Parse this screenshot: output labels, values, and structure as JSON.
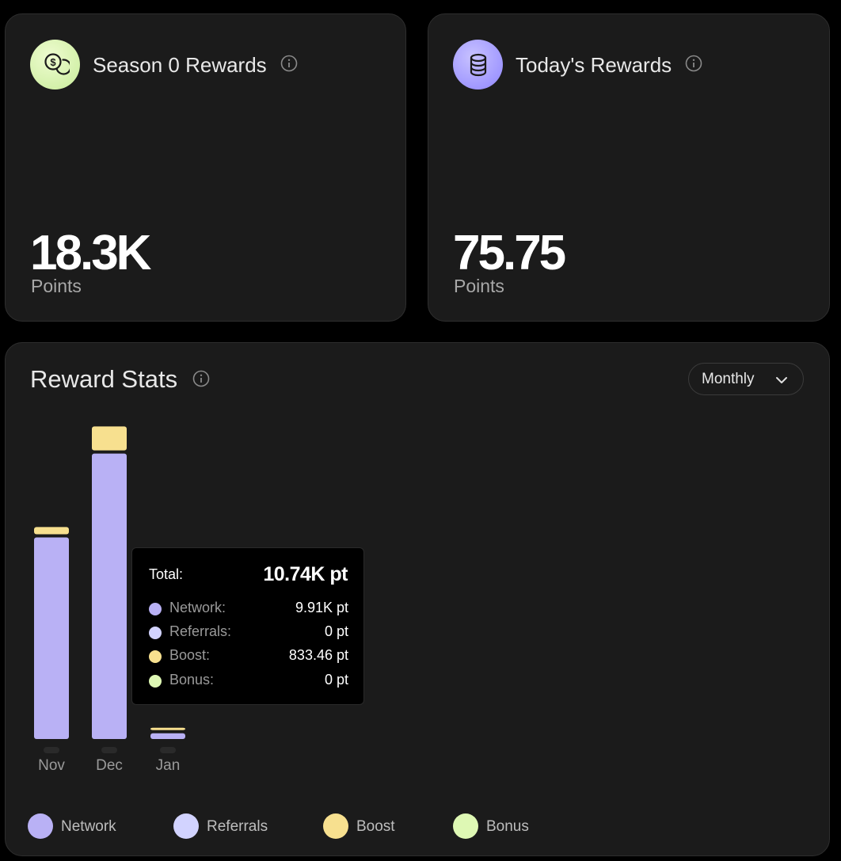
{
  "cards": {
    "season": {
      "title": "Season 0 Rewards",
      "value": "18.3K",
      "unit": "Points"
    },
    "today": {
      "title": "Today's Rewards",
      "value": "75.75",
      "unit": "Points"
    }
  },
  "stats": {
    "title": "Reward Stats",
    "period": "Monthly",
    "tooltip": {
      "total_label": "Total:",
      "total_value": "10.74K pt",
      "rows": [
        {
          "label": "Network:",
          "value": "9.91K pt",
          "color": "#b9b1f5"
        },
        {
          "label": "Referrals:",
          "value": "0 pt",
          "color": "#d2d3ff"
        },
        {
          "label": "Boost:",
          "value": "833.46 pt",
          "color": "#f7e08f"
        },
        {
          "label": "Bonus:",
          "value": "0 pt",
          "color": "#def8b4"
        }
      ]
    },
    "legend": [
      {
        "label": "Network",
        "color": "#b9b1f5"
      },
      {
        "label": "Referrals",
        "color": "#d2d3ff"
      },
      {
        "label": "Boost",
        "color": "#f7e08f"
      },
      {
        "label": "Bonus",
        "color": "#def8b4"
      }
    ]
  },
  "chart_data": {
    "type": "bar",
    "stacked": true,
    "categories": [
      "Nov",
      "Dec",
      "Jan"
    ],
    "series": [
      {
        "name": "Network",
        "color": "#b9b1f5",
        "values": [
          7000,
          9910,
          200
        ]
      },
      {
        "name": "Referrals",
        "color": "#d2d3ff",
        "values": [
          0,
          0,
          0
        ]
      },
      {
        "name": "Boost",
        "color": "#f7e08f",
        "values": [
          250,
          833.46,
          20
        ]
      },
      {
        "name": "Bonus",
        "color": "#def8b4",
        "values": [
          0,
          0,
          0
        ]
      }
    ],
    "ylim": [
      0,
      11000
    ],
    "grid": false,
    "legend": "bottom-left"
  }
}
